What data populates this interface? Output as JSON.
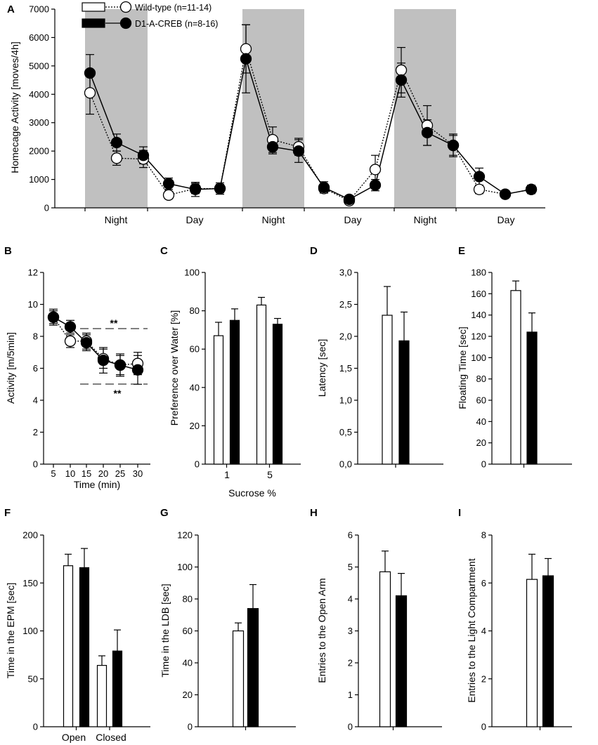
{
  "colors": {
    "wild_type": "#ffffff",
    "creb": "#000000",
    "shade": "#c0c0c0"
  },
  "legend": {
    "wild_type": "Wild-type (n=11-14)",
    "creb": "D1-A-CREB (n=8-16)"
  },
  "chart_data": [
    {
      "id": "A",
      "panel": "A",
      "type": "line",
      "ylabel": "Homecage Activity [moves/4h]",
      "ylim": [
        0,
        7000
      ],
      "yticks": [
        "0",
        "1000",
        "2000",
        "3000",
        "4000",
        "5000",
        "6000",
        "7000"
      ],
      "period_labels": [
        "Night",
        "Day",
        "Night",
        "Day",
        "Night",
        "Day"
      ],
      "night_periods": [
        [
          0,
          2
        ],
        [
          6,
          8
        ],
        [
          12,
          14
        ]
      ],
      "x": [
        0,
        1,
        2,
        3,
        4,
        5,
        6,
        7,
        8,
        9,
        10,
        11,
        12,
        13,
        14,
        15,
        16,
        17
      ],
      "series": [
        {
          "name": "Wild-type (n=11-14)",
          "values": [
            4050,
            1750,
            1720,
            450,
            680,
            680,
            5600,
            2400,
            2150,
            680,
            250,
            1350,
            4850,
            2900,
            2200,
            650,
            480,
            650
          ],
          "errors": [
            750,
            250,
            300,
            130,
            180,
            150,
            850,
            450,
            300,
            150,
            100,
            500,
            800,
            700,
            350,
            150,
            100,
            130
          ]
        },
        {
          "name": "D1-A-CREB (n=8-16)",
          "values": [
            4750,
            2300,
            1850,
            850,
            650,
            680,
            5250,
            2150,
            2000,
            720,
            300,
            800,
            4500,
            2650,
            2200,
            1100,
            480,
            650
          ],
          "errors": [
            650,
            300,
            300,
            200,
            250,
            200,
            1200,
            250,
            400,
            200,
            120,
            200,
            600,
            450,
            400,
            300,
            100,
            150
          ]
        }
      ]
    },
    {
      "id": "B",
      "panel": "B",
      "type": "line",
      "xlabel": "Time (min)",
      "ylabel": "Activity [m/5min]",
      "ylim": [
        0,
        12
      ],
      "yticks": [
        "0",
        "2",
        "4",
        "6",
        "8",
        "10",
        "12"
      ],
      "x": [
        5,
        10,
        15,
        20,
        25,
        30
      ],
      "xticks": [
        "5",
        "10",
        "15",
        "20",
        "25",
        "30"
      ],
      "series": [
        {
          "name": "Wild-type (n=11-14)",
          "values": [
            9.2,
            7.7,
            7.7,
            6.6,
            6.2,
            6.3
          ],
          "errors": [
            0.4,
            0.4,
            0.5,
            0.6,
            0.6,
            0.7
          ]
        },
        {
          "name": "D1-A-CREB (n=8-16)",
          "values": [
            9.2,
            8.6,
            7.6,
            6.5,
            6.2,
            5.9
          ],
          "errors": [
            0.5,
            0.4,
            0.5,
            0.8,
            0.7,
            0.9
          ]
        }
      ],
      "annotations": [
        "**",
        "**"
      ]
    },
    {
      "id": "C",
      "panel": "C",
      "type": "bar",
      "xlabel": "Sucrose %",
      "ylabel": "Preference over Water [%]",
      "ylim": [
        0,
        100
      ],
      "yticks": [
        "0",
        "20",
        "40",
        "60",
        "80",
        "100"
      ],
      "categories": [
        "1",
        "5"
      ],
      "series": [
        {
          "name": "Wild-type (n=11-14)",
          "values": [
            67,
            83
          ],
          "errors": [
            7,
            4
          ]
        },
        {
          "name": "D1-A-CREB (n=8-16)",
          "values": [
            75,
            73
          ],
          "errors": [
            6,
            3
          ]
        }
      ]
    },
    {
      "id": "D",
      "panel": "D",
      "type": "bar",
      "ylabel": "Latency [sec]",
      "ylim": [
        0,
        3.0
      ],
      "yticks": [
        "0,0",
        "0,5",
        "1,0",
        "1,5",
        "2,0",
        "2,5",
        "3,0"
      ],
      "categories": [
        ""
      ],
      "series": [
        {
          "name": "Wild-type (n=11-14)",
          "values": [
            2.33
          ],
          "errors": [
            0.45
          ]
        },
        {
          "name": "D1-A-CREB (n=8-16)",
          "values": [
            1.93
          ],
          "errors": [
            0.45
          ]
        }
      ]
    },
    {
      "id": "E",
      "panel": "E",
      "type": "bar",
      "ylabel": "Floating Time [sec]",
      "ylim": [
        0,
        180
      ],
      "yticks": [
        "0",
        "20",
        "40",
        "60",
        "80",
        "100",
        "120",
        "140",
        "160",
        "180"
      ],
      "categories": [
        ""
      ],
      "series": [
        {
          "name": "Wild-type (n=11-14)",
          "values": [
            163
          ],
          "errors": [
            9
          ]
        },
        {
          "name": "D1-A-CREB (n=8-16)",
          "values": [
            124
          ],
          "errors": [
            18
          ]
        }
      ]
    },
    {
      "id": "F",
      "panel": "F",
      "type": "bar",
      "ylabel": "Time in the EPM [sec]",
      "ylim": [
        0,
        200
      ],
      "yticks": [
        "0",
        "50",
        "100",
        "150",
        "200"
      ],
      "categories": [
        "Open",
        "Closed"
      ],
      "series": [
        {
          "name": "Wild-type (n=11-14)",
          "values": [
            168,
            64
          ],
          "errors": [
            12,
            10
          ]
        },
        {
          "name": "D1-A-CREB (n=8-16)",
          "values": [
            166,
            79
          ],
          "errors": [
            20,
            22
          ]
        }
      ]
    },
    {
      "id": "G",
      "panel": "G",
      "type": "bar",
      "ylabel": "Time in the LDB [sec]",
      "ylim": [
        0,
        120
      ],
      "yticks": [
        "0",
        "20",
        "40",
        "60",
        "80",
        "100",
        "120"
      ],
      "categories": [
        ""
      ],
      "series": [
        {
          "name": "Wild-type (n=11-14)",
          "values": [
            60
          ],
          "errors": [
            5
          ]
        },
        {
          "name": "D1-A-CREB (n=8-16)",
          "values": [
            74
          ],
          "errors": [
            15
          ]
        }
      ]
    },
    {
      "id": "H",
      "panel": "H",
      "type": "bar",
      "ylabel": "Entries to the Open Arm",
      "ylim": [
        0,
        6
      ],
      "yticks": [
        "0",
        "1",
        "2",
        "3",
        "4",
        "5",
        "6"
      ],
      "categories": [
        ""
      ],
      "series": [
        {
          "name": "Wild-type (n=11-14)",
          "values": [
            4.85
          ],
          "errors": [
            0.65
          ]
        },
        {
          "name": "D1-A-CREB (n=8-16)",
          "values": [
            4.1
          ],
          "errors": [
            0.7
          ]
        }
      ]
    },
    {
      "id": "I",
      "panel": "I",
      "type": "bar",
      "ylabel": "Entries to the Light Compartment",
      "ylim": [
        0,
        8
      ],
      "yticks": [
        "0",
        "2",
        "4",
        "6",
        "8"
      ],
      "categories": [
        ""
      ],
      "series": [
        {
          "name": "Wild-type (n=11-14)",
          "values": [
            6.15
          ],
          "errors": [
            1.05
          ]
        },
        {
          "name": "D1-A-CREB (n=8-16)",
          "values": [
            6.3
          ],
          "errors": [
            0.72
          ]
        }
      ]
    }
  ]
}
